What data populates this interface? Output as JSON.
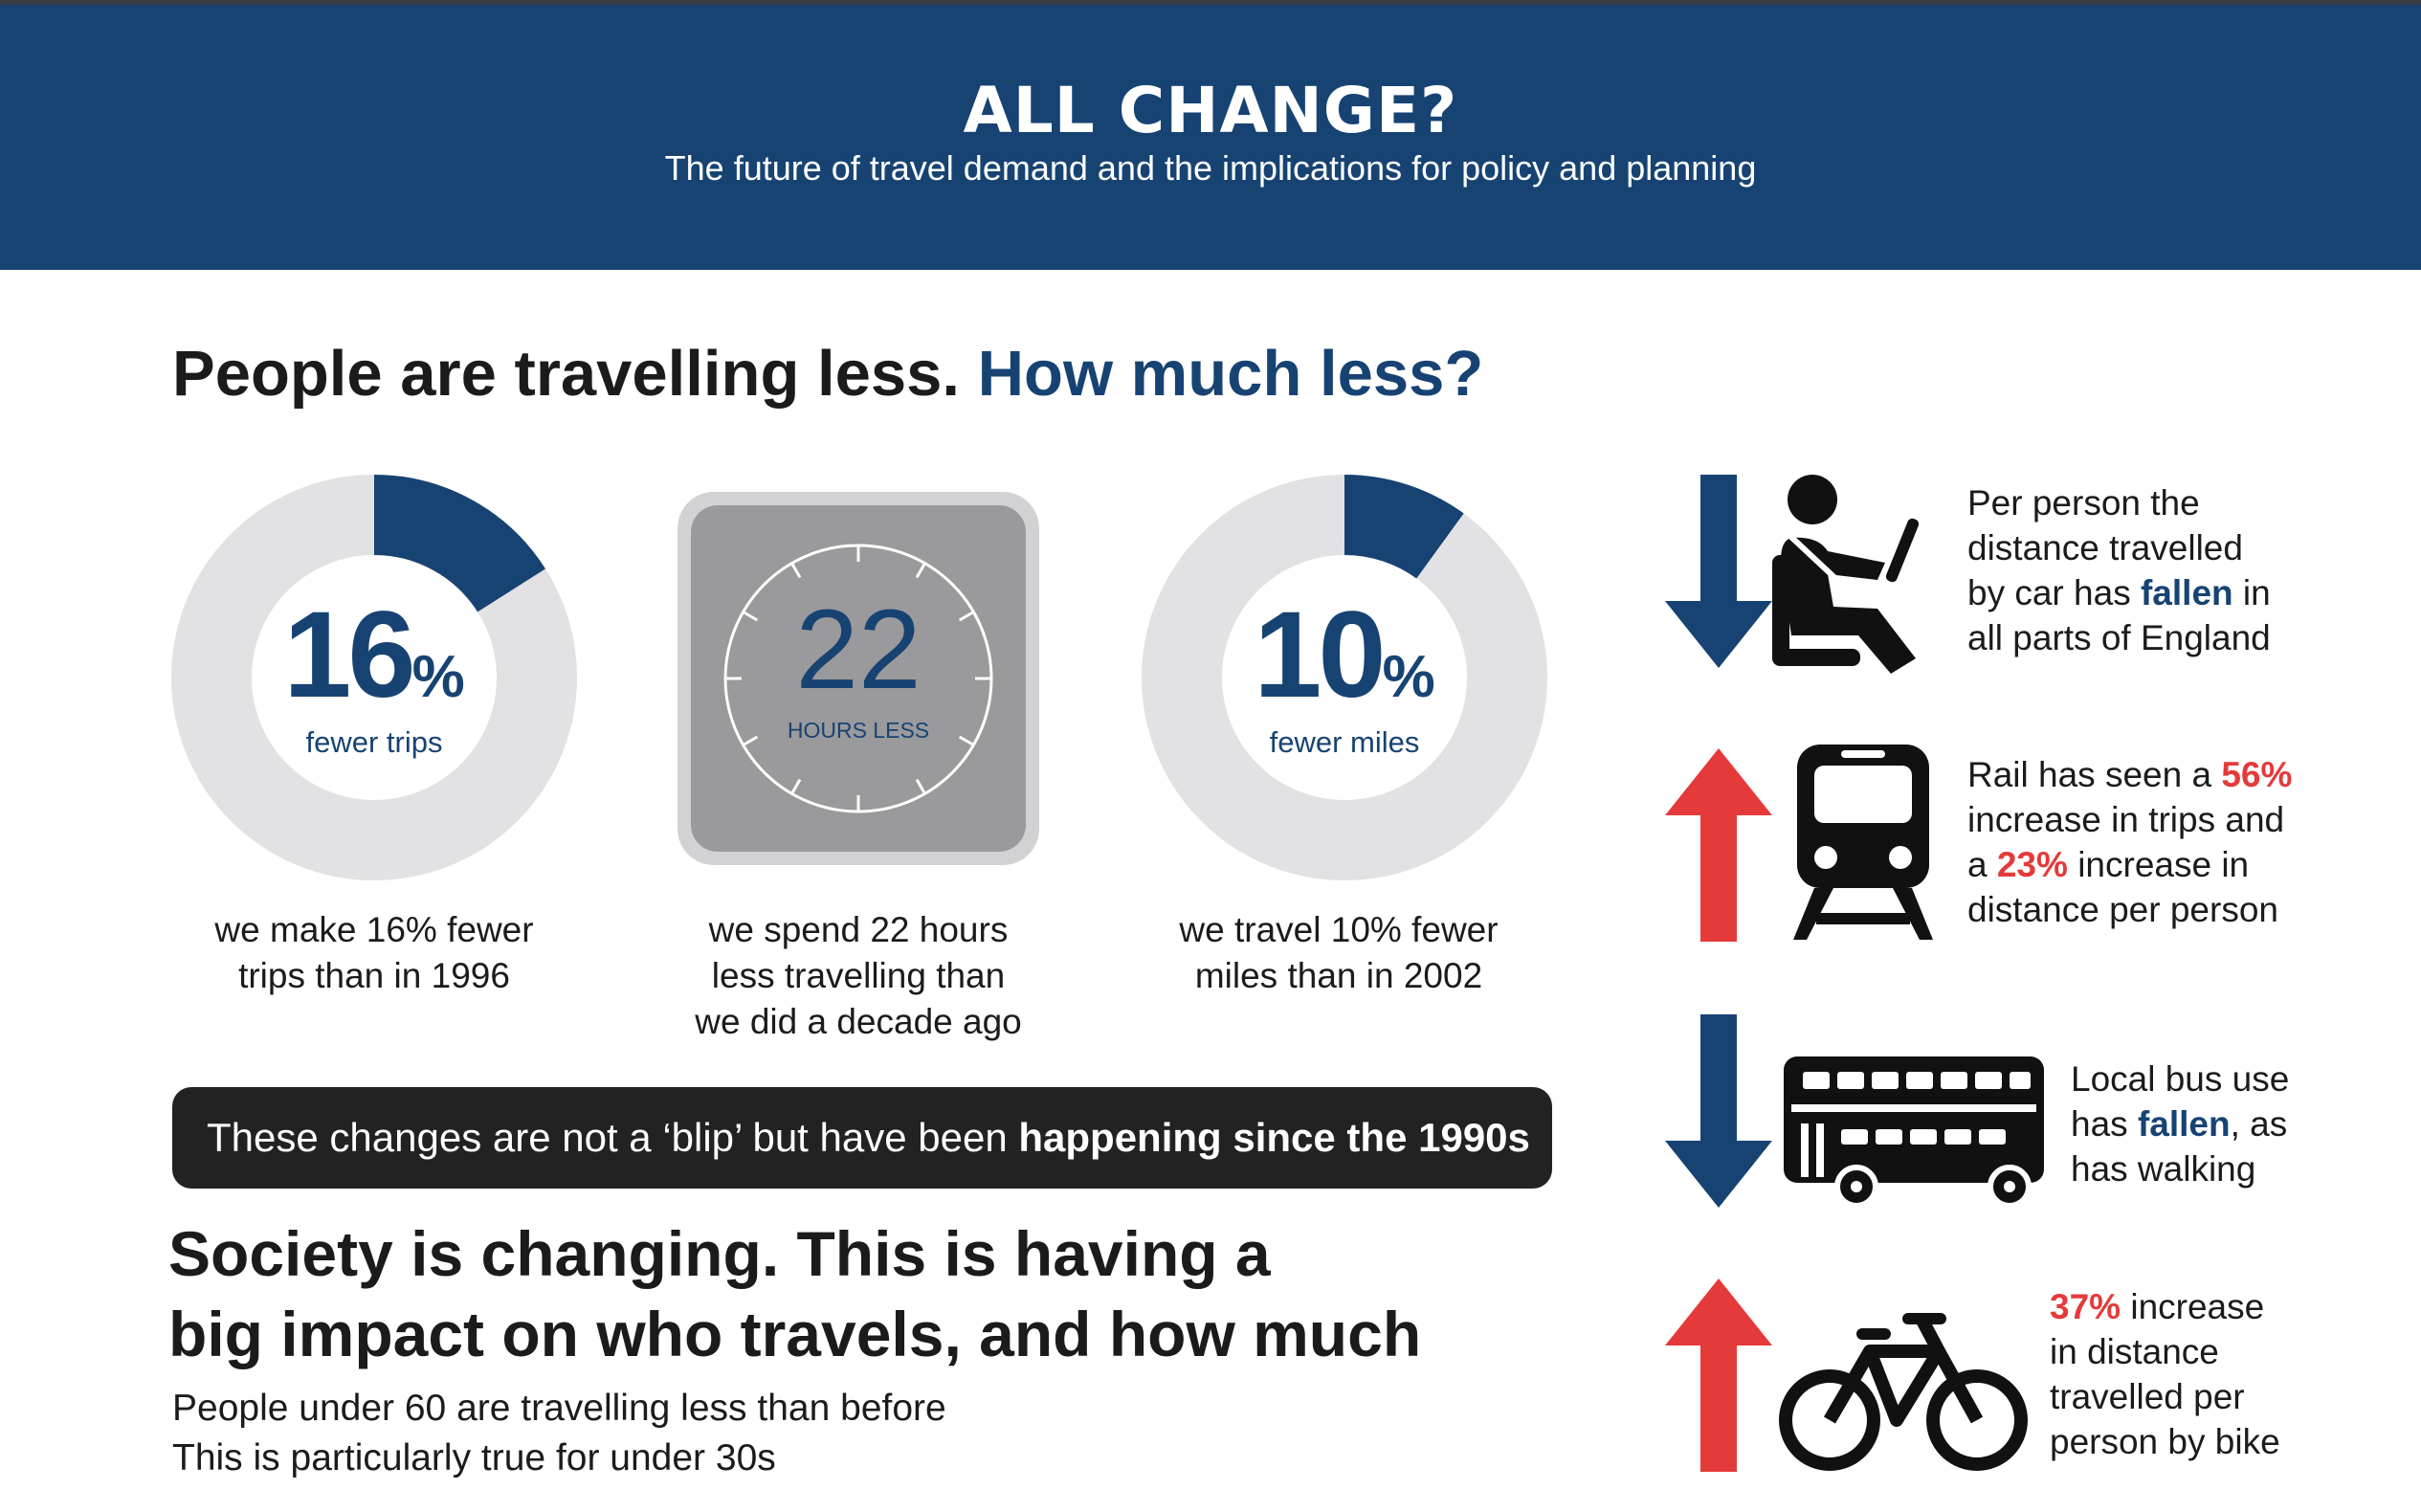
{
  "header": {
    "title": "ALL CHANGE?",
    "subtitle": "The future of travel demand and the implications for policy and planning"
  },
  "section1": {
    "heading_main": "People are travelling less.",
    "heading_accent": "How much less?"
  },
  "stats": [
    {
      "value": "16",
      "unit": "%",
      "label": "fewer trips",
      "fraction": 0.16,
      "caption_lines": [
        "we make 16% fewer",
        "trips than in 1996"
      ]
    },
    {
      "value": "22",
      "label": "HOURS LESS",
      "caption_lines": [
        "we spend 22 hours",
        "less travelling than",
        "we did a decade ago"
      ]
    },
    {
      "value": "10",
      "unit": "%",
      "label": "fewer miles",
      "fraction": 0.1,
      "caption_lines": [
        "we travel 10% fewer",
        "miles than in 2002"
      ]
    }
  ],
  "callout": {
    "normal": "These changes are not a ‘blip’ but have been ",
    "bold": "happening since the 1990s"
  },
  "section2": {
    "heading_lines": [
      "Society is changing. This is having a",
      "big impact on who travels, and how much"
    ],
    "sublines": [
      "People under 60 are travelling less than before",
      "This is particularly true for under 30s"
    ]
  },
  "trends": [
    {
      "direction": "down",
      "icon": "car-driver-icon",
      "lines": [
        [
          {
            "t": "Per person the"
          }
        ],
        [
          {
            "t": "distance travelled"
          }
        ],
        [
          {
            "t": "by car has "
          },
          {
            "t": "fallen",
            "s": "blue"
          },
          {
            "t": " in"
          }
        ],
        [
          {
            "t": "all parts of England"
          }
        ]
      ]
    },
    {
      "direction": "up",
      "icon": "train-icon",
      "lines": [
        [
          {
            "t": "Rail has seen a "
          },
          {
            "t": "56%",
            "s": "red"
          }
        ],
        [
          {
            "t": "increase in trips and"
          }
        ],
        [
          {
            "t": "a "
          },
          {
            "t": "23%",
            "s": "red"
          },
          {
            "t": " increase in"
          }
        ],
        [
          {
            "t": "distance per person"
          }
        ]
      ]
    },
    {
      "direction": "down",
      "icon": "double-decker-bus-icon",
      "lines": [
        [
          {
            "t": "Local bus use"
          }
        ],
        [
          {
            "t": "has "
          },
          {
            "t": "fallen",
            "s": "blue"
          },
          {
            "t": ", as"
          }
        ],
        [
          {
            "t": "has walking"
          }
        ]
      ]
    },
    {
      "direction": "up",
      "icon": "bicycle-icon",
      "lines": [
        [
          {
            "t": "37%",
            "s": "red"
          },
          {
            "t": " increase"
          }
        ],
        [
          {
            "t": "in distance"
          }
        ],
        [
          {
            "t": "travelled per"
          }
        ],
        [
          {
            "t": "person by bike"
          }
        ]
      ]
    }
  ],
  "colors": {
    "navy": "#174373",
    "red": "#e53a3a",
    "ring": "#e2e2e4",
    "dark": "#1b1b1b"
  }
}
